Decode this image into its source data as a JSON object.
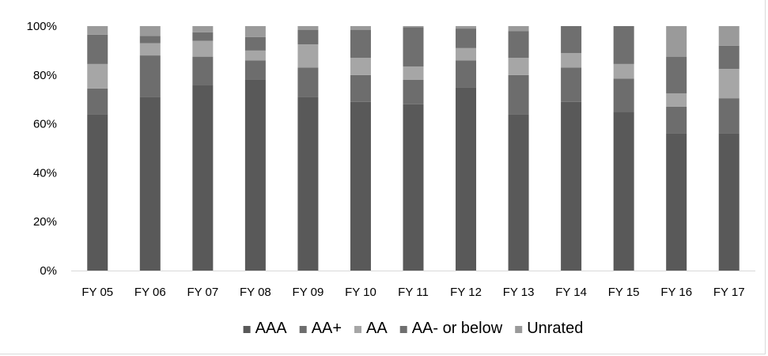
{
  "chart_data": {
    "type": "bar",
    "stacked": true,
    "percent": true,
    "title": "",
    "xlabel": "",
    "ylabel": "",
    "ylim": [
      0,
      100
    ],
    "y_ticks": [
      0,
      20,
      40,
      60,
      80,
      100
    ],
    "y_tick_labels": [
      "0%",
      "20%",
      "40%",
      "60%",
      "80%",
      "100%"
    ],
    "grid": false,
    "legend_position": "bottom",
    "categories": [
      "FY 05",
      "FY 06",
      "FY 07",
      "FY 08",
      "FY 09",
      "FY 10",
      "FY 11",
      "FY 12",
      "FY 13",
      "FY 14",
      "FY 15",
      "FY 16",
      "FY 17"
    ],
    "series": [
      {
        "name": "AAA",
        "color": "#595959",
        "values": [
          64,
          71,
          76,
          78,
          71,
          69,
          68,
          75,
          64,
          69,
          65,
          56,
          56
        ]
      },
      {
        "name": "AA+",
        "color": "#6d6d6d",
        "values": [
          10.5,
          17,
          11.5,
          8,
          12,
          11,
          10,
          11,
          16,
          14,
          13.5,
          11,
          14.5
        ]
      },
      {
        "name": "AA",
        "color": "#a6a6a6",
        "values": [
          10,
          5,
          6.5,
          4,
          9.5,
          7,
          5.5,
          5,
          7,
          6,
          6,
          5.5,
          12
        ]
      },
      {
        "name": "AA- or below",
        "color": "#6f6f6f",
        "values": [
          12,
          3,
          3.5,
          5.5,
          6,
          11.5,
          16,
          8,
          11,
          11,
          15.5,
          15,
          9.5
        ]
      },
      {
        "name": "Unrated",
        "color": "#9a9a9a",
        "values": [
          3.5,
          4,
          2.5,
          4.5,
          1.5,
          1.5,
          0.5,
          1,
          2,
          0,
          0,
          12.5,
          8
        ]
      }
    ]
  }
}
